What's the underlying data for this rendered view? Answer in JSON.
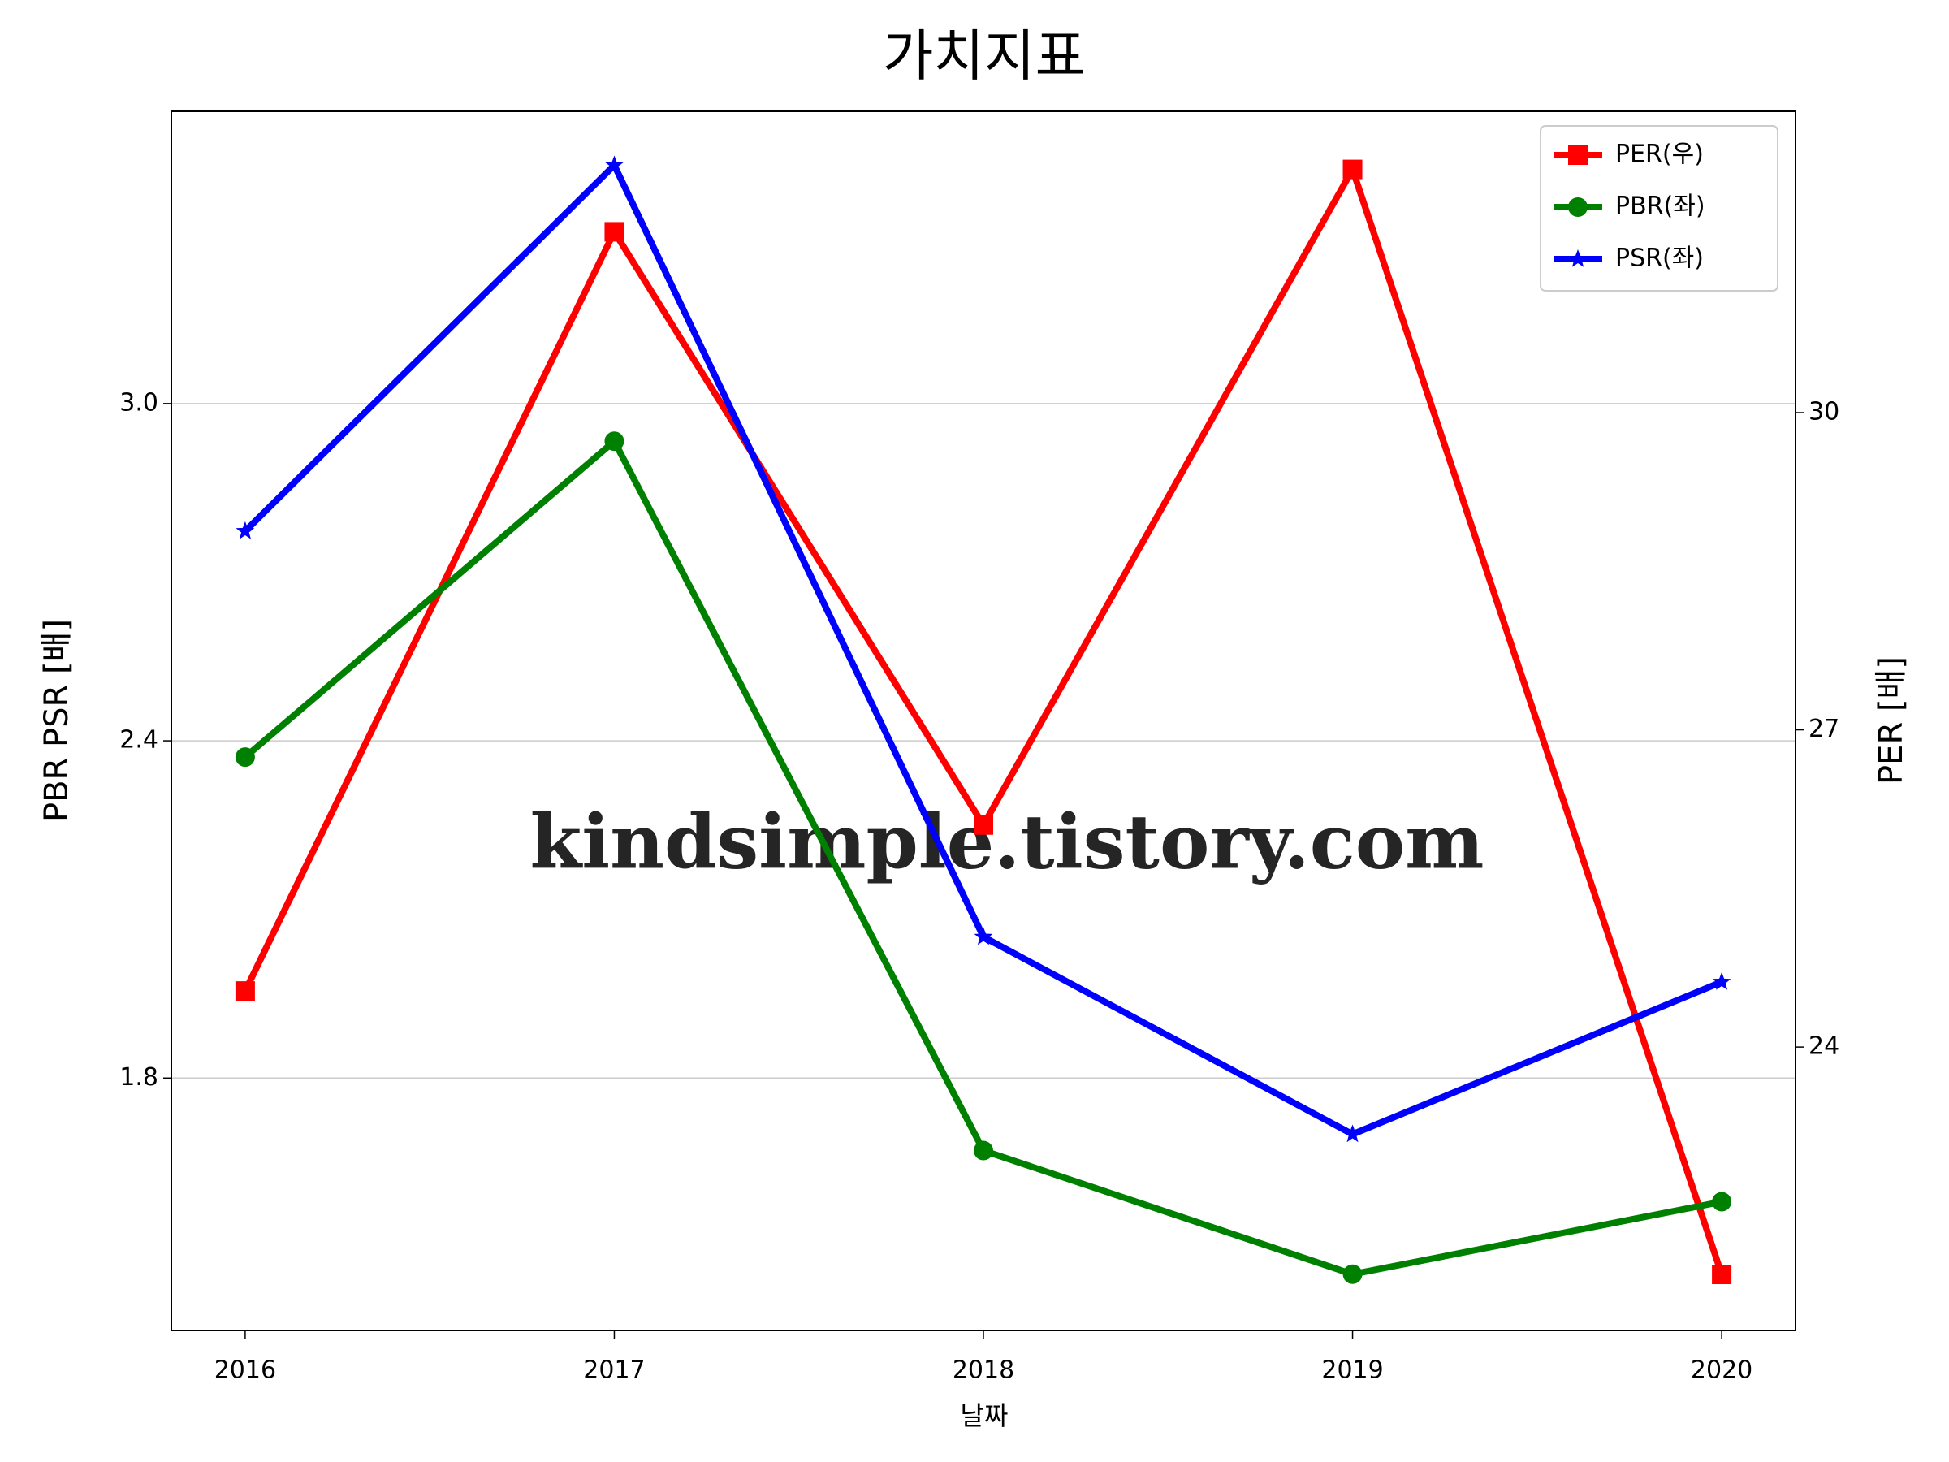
{
  "chart_data": {
    "type": "line",
    "title": "가치지표",
    "x_label": "날짜",
    "y_label": "PBR PSR [배]",
    "y2_label": "PER [배]",
    "y_label_color": "#008000",
    "y2_label_color": "#ff0000",
    "watermark": "kindsimple.tistory.com",
    "x": [
      2016,
      2017,
      2018,
      2019,
      2020
    ],
    "xlim": [
      2015.8,
      2020.2
    ],
    "xticks": [
      2016,
      2017,
      2018,
      2019,
      2020
    ],
    "ylim": [
      1.351,
      3.52
    ],
    "yticks": [
      {
        "value": 1.8,
        "label": "1.8"
      },
      {
        "value": 2.4,
        "label": "2.4"
      },
      {
        "value": 3,
        "label": "3.0"
      }
    ],
    "y2lim": [
      21.32,
      32.85
    ],
    "y2ticks": [
      24,
      27,
      30
    ],
    "grid": true,
    "legend": "upper right",
    "series": [
      {
        "name": "PER(우)",
        "color": "#ff0000",
        "marker": "square",
        "axis": "y2",
        "values": [
          24.53,
          31.71,
          26.1,
          32.3,
          21.85
        ]
      },
      {
        "name": "PBR(좌)",
        "color": "#008000",
        "marker": "circle",
        "values": [
          2.371,
          2.933,
          1.671,
          1.451,
          1.58
        ]
      },
      {
        "name": "PSR(좌)",
        "color": "#0000ff",
        "marker": "star",
        "values": [
          2.773,
          3.424,
          2.051,
          1.7,
          1.971
        ]
      }
    ]
  }
}
